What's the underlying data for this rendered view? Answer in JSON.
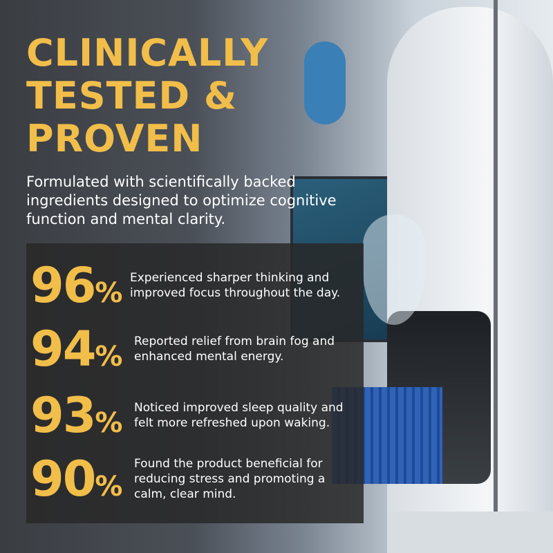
{
  "headline": [
    "CLINICALLY",
    "TESTED &",
    "PROVEN"
  ],
  "subheadline": "Formulated with scientifically backed ingredients designed to optimize cognitive function and mental clarity.",
  "stats": [
    {
      "value": "96",
      "unit": "%",
      "text": "Experienced sharper thinking and improved focus throughout the day."
    },
    {
      "value": "94",
      "unit": "%",
      "text": "Reported relief from brain fog and enhanced mental energy."
    },
    {
      "value": "93",
      "unit": "%",
      "text": "Noticed improved sleep quality and felt more refreshed upon waking."
    },
    {
      "value": "90",
      "unit": "%",
      "text": "Found the product beneficial for reducing stress and promoting a calm, clear mind."
    }
  ],
  "colors": {
    "accent": "#f2be4a",
    "panel": "#282828",
    "text": "#ffffff"
  }
}
